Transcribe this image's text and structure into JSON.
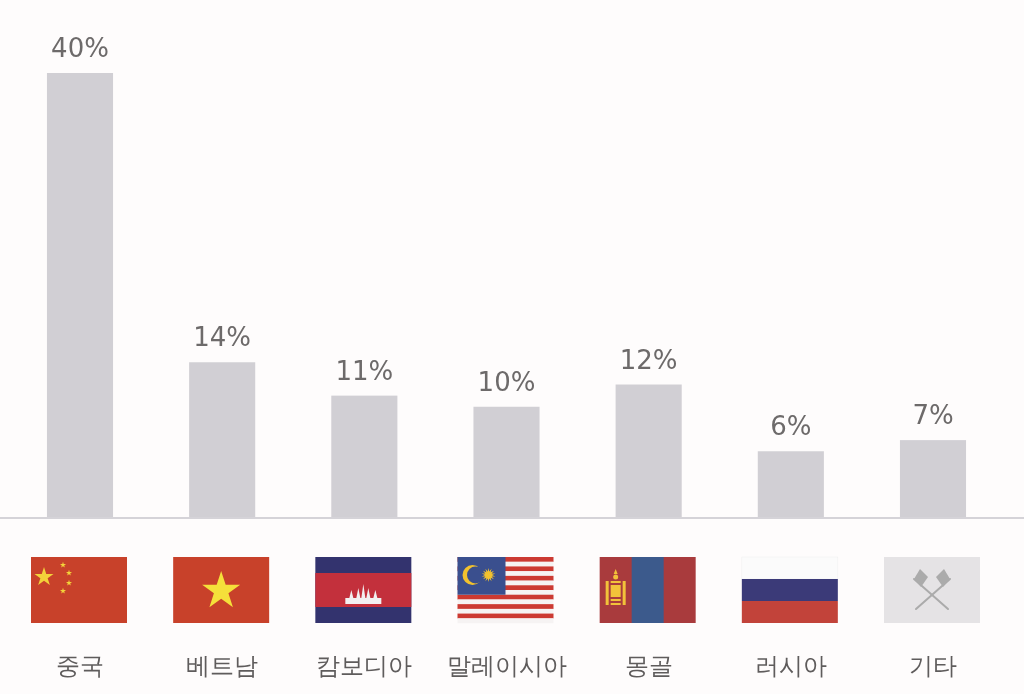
{
  "chart_data": {
    "type": "bar",
    "categories": [
      "중국",
      "베트남",
      "캄보디아",
      "말레이시아",
      "몽골",
      "러시아",
      "기타"
    ],
    "values": [
      40,
      14,
      11,
      10,
      12,
      6,
      7
    ],
    "color": "#d1cfd4",
    "value_labels": [
      "40%",
      "14%",
      "11%",
      "10%",
      "12%",
      "6%",
      "7%"
    ]
  }
}
